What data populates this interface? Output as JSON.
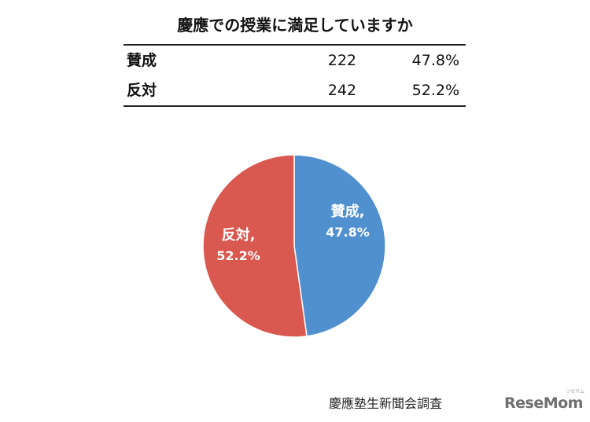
{
  "chart_data": {
    "type": "pie",
    "title": "慶應での授業に満足していますか",
    "categories": [
      "賛成",
      "反対"
    ],
    "counts": [
      "222",
      "242"
    ],
    "percents": [
      "47.8%",
      "52.2%"
    ],
    "values": [
      47.8,
      52.2
    ],
    "colors": [
      "#5090cf",
      "#d9584f"
    ],
    "slice_labels": [
      {
        "name": "賛成,",
        "value": "47.8%"
      },
      {
        "name": "反対,",
        "value": "52.2%"
      }
    ]
  },
  "table": {
    "rows": [
      {
        "label": "賛成",
        "count": "222",
        "percent": "47.8%"
      },
      {
        "label": "反対",
        "count": "242",
        "percent": "52.2%"
      }
    ]
  },
  "source": "慶應塾生新聞会調査",
  "logo": {
    "text": "ReseMom",
    "small": "リセマム"
  }
}
